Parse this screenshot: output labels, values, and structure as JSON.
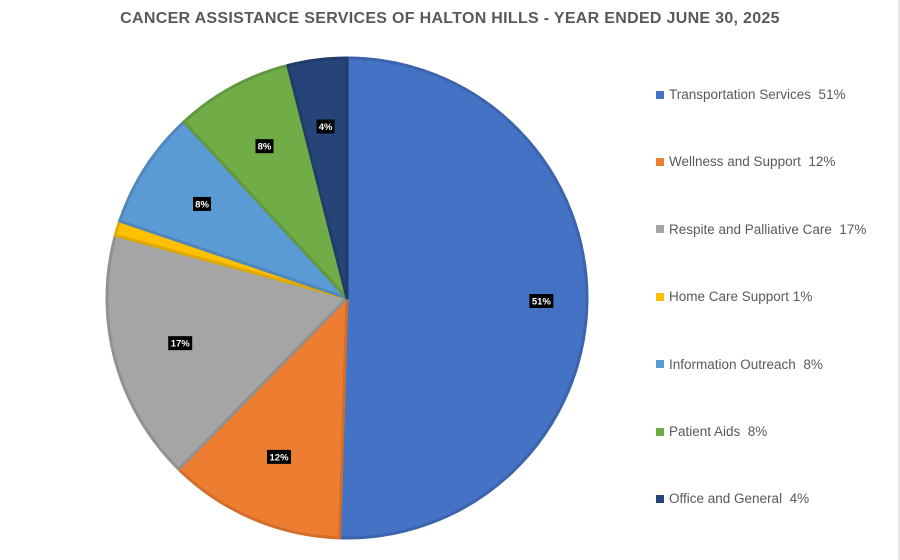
{
  "chart_data": {
    "type": "pie",
    "title": "CANCER ASSISTANCE SERVICES OF HALTON HILLS - YEAR ENDED JUNE 30, 2025",
    "start_angle": "top, clockwise",
    "legend_position": "right",
    "slices": [
      {
        "name": "Transportation Services",
        "legend": "Transportation Services  51%",
        "value": 51,
        "label": "51%",
        "show_label": true,
        "color": "#4472C4"
      },
      {
        "name": "Wellness and Support",
        "legend": "Wellness and Support  12%",
        "value": 12,
        "label": "12%",
        "show_label": true,
        "color": "#ED7D31"
      },
      {
        "name": "Respite and Palliative Care",
        "legend": "Respite and Palliative Care  17%",
        "value": 17,
        "label": "17%",
        "show_label": true,
        "color": "#A5A5A5"
      },
      {
        "name": "Home Care Support",
        "legend": "Home Care Support 1%",
        "value": 1,
        "label": "1%",
        "show_label": false,
        "color": "#FFC000"
      },
      {
        "name": "Information Outreach",
        "legend": "Information Outreach  8%",
        "value": 8,
        "label": "8%",
        "show_label": true,
        "color": "#5B9BD5"
      },
      {
        "name": "Patient Aids",
        "legend": "Patient Aids  8%",
        "value": 8,
        "label": "8%",
        "show_label": true,
        "color": "#70AD47"
      },
      {
        "name": "Office and General",
        "legend": "Office and General  4%",
        "value": 4,
        "label": "4%",
        "show_label": true,
        "color": "#264478"
      }
    ]
  }
}
